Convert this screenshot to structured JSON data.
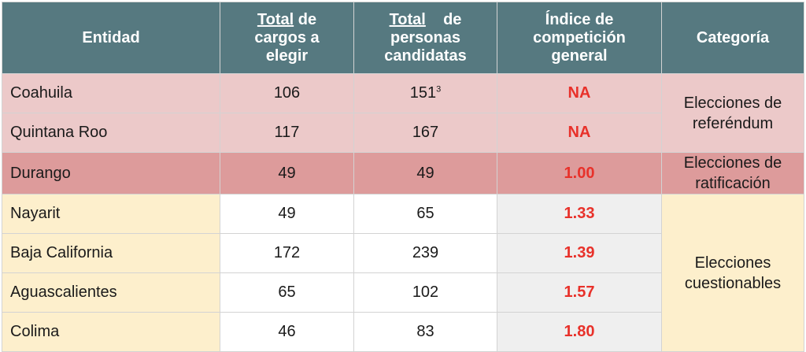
{
  "header": {
    "entidad": "Entidad",
    "cargos_line1": "Total",
    "cargos_line1b": " de",
    "cargos_line2": "cargos a",
    "cargos_line3": "elegir",
    "personas_line1": "Total",
    "personas_line1b": "de",
    "personas_line2": "personas",
    "personas_line3": "candidatas",
    "indice_line1": "Índice de",
    "indice_line2": "competición",
    "indice_line3": "general",
    "categoria": "Categoría"
  },
  "rows": [
    {
      "entidad": "Coahuila",
      "cargos": "106",
      "personas": "151",
      "personas_note": "3",
      "indice": "NA"
    },
    {
      "entidad": "Quintana Roo",
      "cargos": "117",
      "personas": "167",
      "indice": "NA"
    },
    {
      "entidad": "Durango",
      "cargos": "49",
      "personas": "49",
      "indice": "1.00"
    },
    {
      "entidad": "Nayarit",
      "cargos": "49",
      "personas": "65",
      "indice": "1.33"
    },
    {
      "entidad": "Baja California",
      "cargos": "172",
      "personas": "239",
      "indice": "1.39"
    },
    {
      "entidad": "Aguascalientes",
      "cargos": "65",
      "personas": "102",
      "indice": "1.57"
    },
    {
      "entidad": "Colima",
      "cargos": "46",
      "personas": "83",
      "indice": "1.80"
    }
  ],
  "categories": {
    "referendum_line1": "Elecciones de",
    "referendum_line2": "referéndum",
    "ratificacion_line1": "Elecciones de",
    "ratificacion_line2": "ratificación",
    "cuestionables_line1": "Elecciones",
    "cuestionables_line2": "cuestionables"
  },
  "colors": {
    "header_bg": "#567980",
    "referendum_bg": "#ecc9c9",
    "ratificacion_bg": "#dd9b9b",
    "cuestionables_bg": "#fdefcc",
    "indice_text": "#e8312a"
  }
}
